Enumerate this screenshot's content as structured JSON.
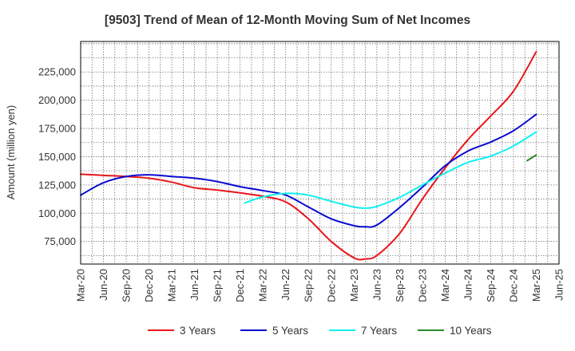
{
  "chart_data": {
    "type": "line",
    "title": "[9503]  Trend of Mean of 12-Month Moving Sum of Net Incomes",
    "xlabel": "",
    "ylabel": "Amount (million yen)",
    "ylim": [
      55000,
      252000
    ],
    "yticks": [
      75000,
      100000,
      125000,
      150000,
      175000,
      200000,
      225000
    ],
    "ytick_labels": [
      "75,000",
      "100,000",
      "125,000",
      "150,000",
      "175,000",
      "200,000",
      "225,000"
    ],
    "x_categories": [
      "Mar-20",
      "Jun-20",
      "Sep-20",
      "Dec-20",
      "Mar-21",
      "Jun-21",
      "Sep-21",
      "Dec-21",
      "Mar-22",
      "Jun-22",
      "Sep-22",
      "Dec-22",
      "Mar-23",
      "Jun-23",
      "Sep-23",
      "Dec-23",
      "Mar-24",
      "Jun-24",
      "Sep-24",
      "Dec-24",
      "Mar-25",
      "Jun-25"
    ],
    "grid": true,
    "legend_position": "bottom",
    "series": [
      {
        "name": "3 Years",
        "color": "#e8161b",
        "points": [
          [
            0,
            134500
          ],
          [
            1,
            133500
          ],
          [
            2,
            132500
          ],
          [
            3,
            131000
          ],
          [
            4,
            127500
          ],
          [
            5,
            122500
          ],
          [
            6,
            120500
          ],
          [
            7,
            118000
          ],
          [
            8,
            115000
          ],
          [
            9,
            110000
          ],
          [
            10,
            95000
          ],
          [
            11,
            75000
          ],
          [
            12,
            60500
          ],
          [
            12.5,
            59500
          ],
          [
            13,
            62500
          ],
          [
            14,
            82000
          ],
          [
            15,
            112500
          ],
          [
            16,
            140000
          ],
          [
            17,
            165000
          ],
          [
            18,
            186000
          ],
          [
            19,
            208000
          ],
          [
            20,
            243000
          ]
        ]
      },
      {
        "name": "5 Years",
        "color": "#0a0ad0",
        "points": [
          [
            0,
            116000
          ],
          [
            1,
            127000
          ],
          [
            2,
            132500
          ],
          [
            3,
            134000
          ],
          [
            4,
            132500
          ],
          [
            5,
            131000
          ],
          [
            6,
            128000
          ],
          [
            7,
            123500
          ],
          [
            8,
            120000
          ],
          [
            9,
            116000
          ],
          [
            10,
            105500
          ],
          [
            11,
            95000
          ],
          [
            12,
            89000
          ],
          [
            12.5,
            88000
          ],
          [
            13,
            89500
          ],
          [
            14,
            105000
          ],
          [
            15,
            123000
          ],
          [
            16,
            142000
          ],
          [
            17,
            155000
          ],
          [
            18,
            163000
          ],
          [
            19,
            173000
          ],
          [
            20,
            187500
          ]
        ]
      },
      {
        "name": "7 Years",
        "color": "#12f0f0",
        "points": [
          [
            7.2,
            109000
          ],
          [
            8,
            114500
          ],
          [
            9,
            117500
          ],
          [
            10,
            116000
          ],
          [
            11,
            110500
          ],
          [
            12,
            105500
          ],
          [
            12.5,
            104500
          ],
          [
            13,
            106000
          ],
          [
            14,
            114000
          ],
          [
            15,
            125000
          ],
          [
            16,
            135500
          ],
          [
            17,
            145000
          ],
          [
            18,
            150500
          ],
          [
            19,
            159500
          ],
          [
            20,
            172000
          ]
        ]
      },
      {
        "name": "10 Years",
        "color": "#2a8a2a",
        "points": [
          [
            19.6,
            146500
          ],
          [
            20,
            151500
          ]
        ]
      }
    ]
  }
}
